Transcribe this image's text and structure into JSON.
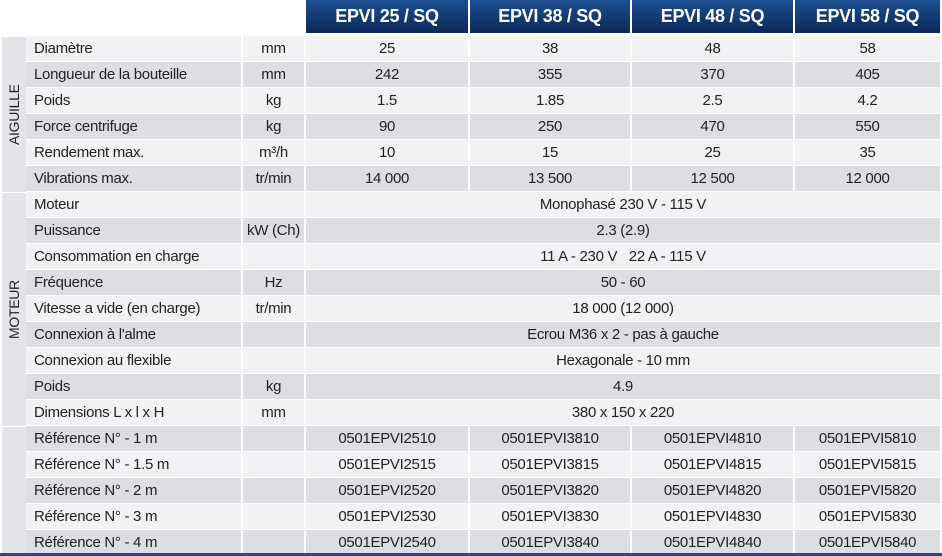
{
  "table": {
    "headers": [
      "EPVI 25 / SQ",
      "EPVI 38 / SQ",
      "EPVI 48 / SQ",
      "EPVI 58 / SQ"
    ],
    "groups": [
      {
        "label": "AIGUILLE",
        "rows": [
          {
            "label": "Diamètre",
            "unit": "mm",
            "values": [
              "25",
              "38",
              "48",
              "58"
            ]
          },
          {
            "label": "Longueur de la bouteille",
            "unit": "mm",
            "values": [
              "242",
              "355",
              "370",
              "405"
            ]
          },
          {
            "label": "Poids",
            "unit": "kg",
            "values": [
              "1.5",
              "1.85",
              "2.5",
              "4.2"
            ]
          },
          {
            "label": "Force centrifuge",
            "unit": "kg",
            "values": [
              "90",
              "250",
              "470",
              "550"
            ]
          },
          {
            "label": "Rendement max.",
            "unit": "m³/h",
            "values": [
              "10",
              "15",
              "25",
              "35"
            ]
          },
          {
            "label": "Vibrations max.",
            "unit": "tr/min",
            "values": [
              "14 000",
              "13 500",
              "12 500",
              "12 000"
            ]
          }
        ]
      },
      {
        "label": "MOTEUR",
        "rows": [
          {
            "label": "Moteur",
            "value": "Monophasé 230 V - 115 V"
          },
          {
            "label": "Puissance",
            "unit": "kW (Ch)",
            "value": "2.3 (2.9)"
          },
          {
            "label": "Consommation en charge",
            "value": "11 A - 230 V   22 A - 115 V"
          },
          {
            "label": "Fréquence",
            "unit": "Hz",
            "value": "50 - 60"
          },
          {
            "label": "Vitesse a vide (en charge)",
            "unit": "tr/min",
            "value": "18 000 (12 000)"
          },
          {
            "label": "Connexion à l'alme",
            "value": "Ecrou M36 x 2 - pas à gauche"
          },
          {
            "label": "Connexion au flexible",
            "value": "Hexagonale - 10 mm"
          },
          {
            "label": "Poids",
            "unit": "kg",
            "value": "4.9"
          },
          {
            "label": "Dimensions L x l x H",
            "unit": "mm",
            "value": "380 x 150 x 220"
          }
        ]
      },
      {
        "rows": [
          {
            "label": "Référence N° - 1 m",
            "values": [
              "0501EPVI2510",
              "0501EPVI3810",
              "0501EPVI4810",
              "0501EPVI5810"
            ]
          },
          {
            "label": "Référence N° - 1.5 m",
            "values": [
              "0501EPVI2515",
              "0501EPVI3815",
              "0501EPVI4815",
              "0501EPVI5815"
            ]
          },
          {
            "label": "Référence N° - 2 m",
            "values": [
              "0501EPVI2520",
              "0501EPVI3820",
              "0501EPVI4820",
              "0501EPVI5820"
            ]
          },
          {
            "label": "Référence N° - 3 m",
            "values": [
              "0501EPVI2530",
              "0501EPVI3830",
              "0501EPVI4830",
              "0501EPVI5830"
            ]
          },
          {
            "label": "Référence N° - 4 m",
            "values": [
              "0501EPVI2540",
              "0501EPVI3840",
              "0501EPVI4840",
              "0501EPVI5840"
            ]
          }
        ]
      }
    ]
  }
}
